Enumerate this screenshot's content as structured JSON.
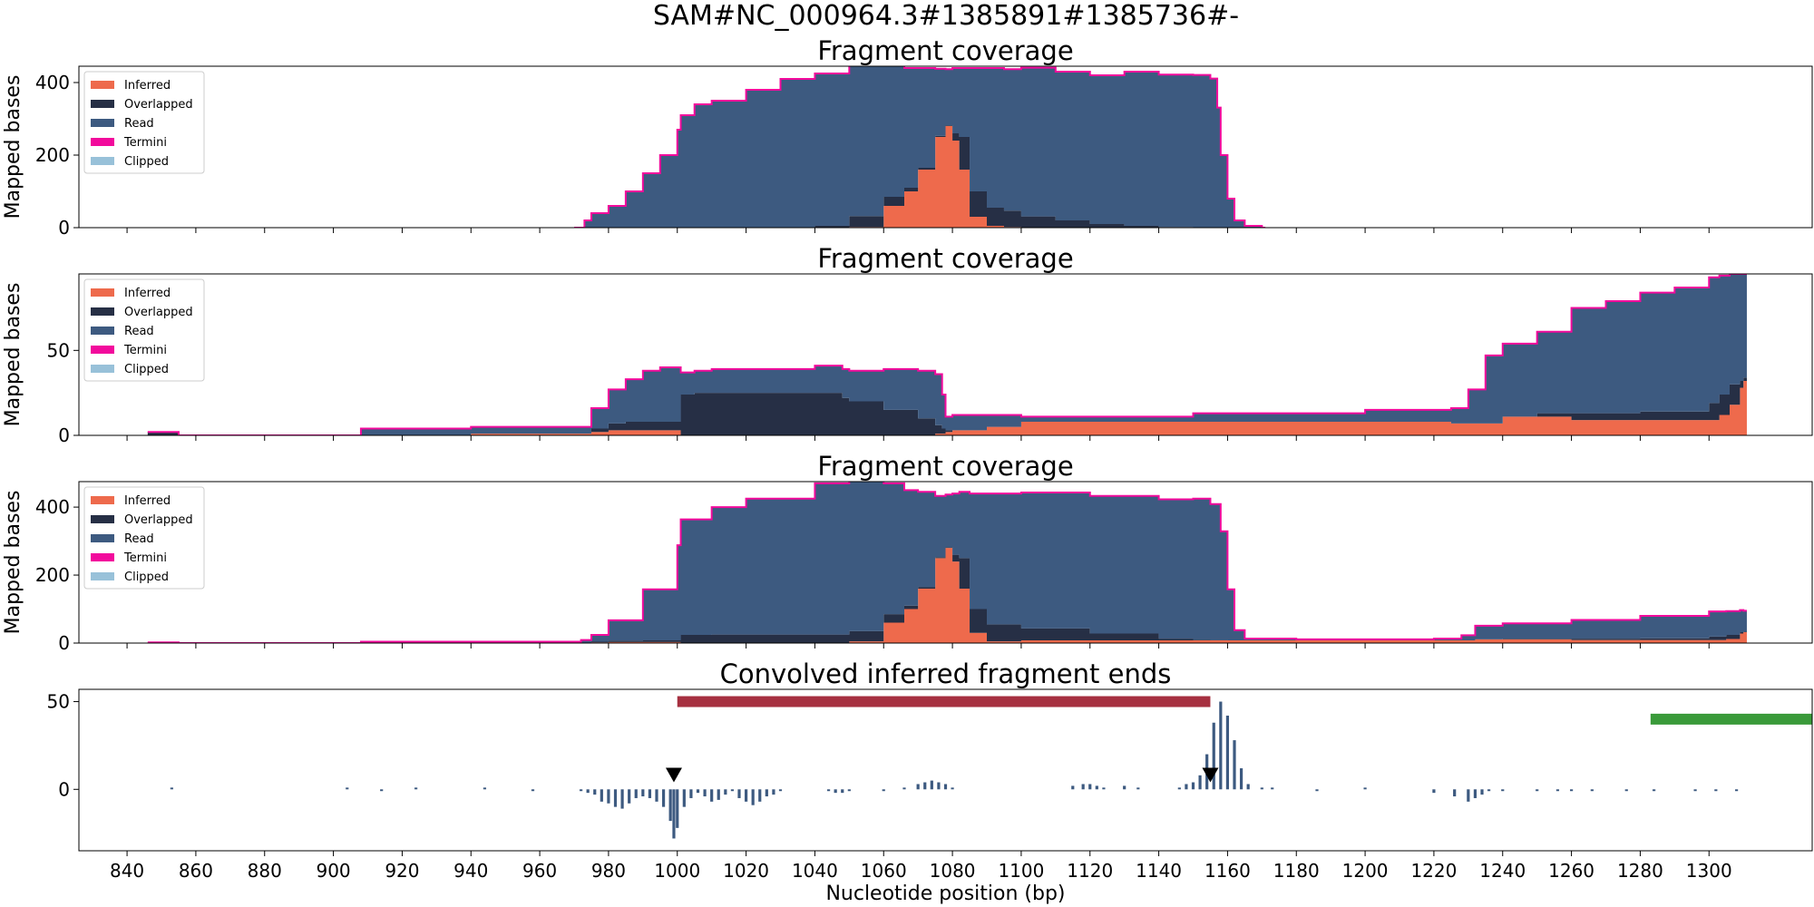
{
  "figure": {
    "suptitle": "SAM#NC_000964.3#1385891#1385736#-",
    "xlabel": "Nucleotide position (bp)",
    "x_ticks": [
      840,
      860,
      880,
      900,
      920,
      940,
      960,
      980,
      1000,
      1020,
      1040,
      1060,
      1080,
      1100,
      1120,
      1140,
      1160,
      1180,
      1200,
      1220,
      1240,
      1260,
      1280,
      1300
    ],
    "xlim": [
      826,
      1330
    ],
    "legend_entries": [
      {
        "label": "Inferred",
        "color": "#ee6a4c"
      },
      {
        "label": "Overlapped",
        "color": "#262f45"
      },
      {
        "label": "Read",
        "color": "#3d5a80"
      },
      {
        "label": "Termini",
        "color": "#f20a9c"
      },
      {
        "label": "Clipped",
        "color": "#98c1d9"
      }
    ]
  },
  "chart_data": [
    {
      "type": "area",
      "title": "Fragment coverage",
      "ylabel": "Mapped bases",
      "ylim": [
        0,
        445
      ],
      "yticks": [
        0,
        200,
        400
      ],
      "legend_position": "upper-left",
      "stacked": true,
      "x": [
        970,
        973,
        975,
        980,
        985,
        990,
        995,
        1000,
        1001,
        1005,
        1010,
        1020,
        1030,
        1040,
        1050,
        1060,
        1066,
        1070,
        1075,
        1078,
        1080,
        1082,
        1085,
        1090,
        1095,
        1100,
        1110,
        1120,
        1130,
        1140,
        1150,
        1155,
        1157,
        1158,
        1160,
        1162,
        1165,
        1170
      ],
      "series": [
        {
          "name": "Inferred",
          "values": [
            0,
            0,
            0,
            0,
            0,
            0,
            0,
            0,
            0,
            0,
            0,
            0,
            0,
            0,
            2,
            60,
            100,
            160,
            250,
            280,
            240,
            160,
            30,
            5,
            2,
            1,
            0,
            0,
            0,
            0,
            0,
            0,
            0,
            0,
            0,
            0,
            0,
            0
          ]
        },
        {
          "name": "Overlapped",
          "values": [
            0,
            0,
            0,
            0,
            0,
            0,
            0,
            0,
            0,
            0,
            0,
            0,
            0,
            5,
            30,
            25,
            10,
            5,
            3,
            2,
            20,
            90,
            70,
            50,
            45,
            30,
            20,
            10,
            5,
            2,
            1,
            1,
            1,
            0,
            0,
            0,
            0,
            0
          ]
        },
        {
          "name": "Read",
          "values": [
            0,
            20,
            40,
            60,
            100,
            150,
            200,
            270,
            310,
            340,
            350,
            380,
            410,
            420,
            415,
            370,
            330,
            275,
            185,
            155,
            180,
            190,
            340,
            385,
            390,
            410,
            410,
            410,
            425,
            420,
            420,
            410,
            330,
            200,
            80,
            20,
            5,
            0
          ]
        }
      ]
    },
    {
      "type": "area",
      "title": "Fragment coverage",
      "ylabel": "Mapped bases",
      "ylim": [
        0,
        95
      ],
      "yticks": [
        0,
        50
      ],
      "legend_position": "upper-left",
      "stacked": true,
      "x": [
        846,
        852,
        855,
        900,
        908,
        940,
        972,
        975,
        980,
        985,
        990,
        995,
        1000,
        1001,
        1005,
        1010,
        1040,
        1048,
        1050,
        1060,
        1070,
        1075,
        1077,
        1078,
        1080,
        1090,
        1100,
        1150,
        1200,
        1225,
        1230,
        1235,
        1240,
        1250,
        1260,
        1270,
        1280,
        1290,
        1300,
        1303,
        1306,
        1309,
        1310
      ],
      "series": [
        {
          "name": "Inferred",
          "values": [
            0,
            0,
            0,
            0,
            0,
            1,
            1,
            2,
            3,
            3,
            3,
            3,
            3,
            0,
            0,
            0,
            0,
            0,
            0,
            0,
            0,
            1,
            1,
            2,
            3,
            5,
            8,
            8,
            8,
            7,
            7,
            7,
            11,
            11,
            9,
            9,
            9,
            9,
            9,
            12,
            18,
            28,
            32
          ]
        },
        {
          "name": "Overlapped",
          "values": [
            2,
            2,
            0,
            0,
            0,
            0,
            0,
            2,
            4,
            5,
            5,
            5,
            5,
            24,
            25,
            25,
            25,
            22,
            20,
            15,
            10,
            5,
            3,
            1,
            0,
            0,
            0,
            0,
            0,
            0,
            0,
            0,
            0,
            2,
            4,
            4,
            5,
            5,
            10,
            12,
            12,
            4,
            2
          ]
        },
        {
          "name": "Read",
          "values": [
            0,
            0,
            0,
            0,
            4,
            4,
            4,
            12,
            20,
            25,
            30,
            32,
            32,
            13,
            13,
            14,
            16,
            17,
            18,
            24,
            28,
            30,
            20,
            8,
            9,
            7,
            3,
            5,
            7,
            9,
            20,
            40,
            43,
            48,
            62,
            66,
            70,
            73,
            74,
            70,
            65,
            63,
            61
          ]
        }
      ]
    },
    {
      "type": "area",
      "title": "Fragment coverage",
      "ylabel": "Mapped bases",
      "ylim": [
        0,
        475
      ],
      "yticks": [
        0,
        200,
        400
      ],
      "legend_position": "upper-left",
      "stacked": true,
      "x": [
        846,
        852,
        855,
        908,
        972,
        975,
        980,
        990,
        1000,
        1001,
        1010,
        1020,
        1040,
        1050,
        1060,
        1066,
        1070,
        1075,
        1078,
        1080,
        1082,
        1085,
        1090,
        1100,
        1120,
        1140,
        1150,
        1155,
        1158,
        1160,
        1162,
        1165,
        1180,
        1220,
        1228,
        1232,
        1240,
        1260,
        1280,
        1300,
        1305,
        1309,
        1310
      ],
      "series": [
        {
          "name": "Inferred",
          "values": [
            0,
            0,
            0,
            0,
            1,
            2,
            3,
            3,
            3,
            0,
            0,
            0,
            0,
            5,
            60,
            100,
            160,
            250,
            280,
            240,
            160,
            30,
            5,
            8,
            8,
            8,
            8,
            8,
            8,
            8,
            8,
            8,
            8,
            8,
            8,
            11,
            11,
            9,
            9,
            9,
            12,
            28,
            32
          ]
        },
        {
          "name": "Overlapped",
          "values": [
            2,
            2,
            0,
            0,
            0,
            2,
            4,
            5,
            5,
            24,
            25,
            25,
            25,
            30,
            25,
            10,
            5,
            3,
            2,
            20,
            90,
            70,
            50,
            35,
            20,
            5,
            2,
            1,
            1,
            0,
            0,
            0,
            0,
            0,
            0,
            0,
            2,
            4,
            5,
            10,
            12,
            4,
            2
          ]
        },
        {
          "name": "Read",
          "values": [
            0,
            0,
            0,
            4,
            8,
            20,
            60,
            150,
            280,
            340,
            375,
            400,
            445,
            445,
            385,
            340,
            280,
            180,
            155,
            180,
            195,
            340,
            385,
            400,
            405,
            410,
            415,
            400,
            320,
            150,
            30,
            5,
            3,
            5,
            15,
            40,
            45,
            55,
            66,
            74,
            70,
            65,
            61
          ]
        }
      ]
    },
    {
      "type": "bar",
      "title": "Convolved inferred fragment ends",
      "ylabel": "",
      "ylim": [
        -35,
        57
      ],
      "yticks": [
        0,
        50
      ],
      "series": [
        {
          "name": "",
          "x": [
            853,
            904,
            914,
            924,
            944,
            958,
            972,
            974,
            976,
            978,
            980,
            982,
            984,
            986,
            988,
            990,
            992,
            994,
            996,
            998,
            999,
            1000,
            1002,
            1004,
            1006,
            1008,
            1010,
            1012,
            1014,
            1016,
            1018,
            1020,
            1022,
            1024,
            1026,
            1028,
            1030,
            1044,
            1046,
            1048,
            1050,
            1060,
            1066,
            1070,
            1072,
            1074,
            1076,
            1078,
            1080,
            1115,
            1118,
            1120,
            1122,
            1124,
            1130,
            1134,
            1146,
            1148,
            1150,
            1152,
            1154,
            1156,
            1158,
            1160,
            1162,
            1164,
            1166,
            1170,
            1173,
            1186,
            1200,
            1220,
            1226,
            1230,
            1232,
            1234,
            1236,
            1240,
            1250,
            1256,
            1260,
            1266,
            1276,
            1284,
            1296,
            1302,
            1308
          ],
          "values": [
            1,
            1,
            -1,
            1,
            1,
            -1,
            -1,
            -2,
            -3,
            -7,
            -8,
            -10,
            -11,
            -8,
            -5,
            -4,
            -5,
            -7,
            -10,
            -18,
            -28,
            -22,
            -10,
            -5,
            -2,
            -4,
            -7,
            -6,
            -3,
            -1,
            -5,
            -7,
            -9,
            -7,
            -4,
            -3,
            -1,
            -1,
            -2,
            -2,
            -1,
            -1,
            1,
            3,
            4,
            5,
            4,
            3,
            1,
            2,
            3,
            3,
            2,
            1,
            2,
            1,
            1,
            3,
            4,
            8,
            20,
            38,
            50,
            42,
            28,
            12,
            3,
            1,
            1,
            -1,
            1,
            -2,
            -4,
            -7,
            -5,
            -3,
            -1,
            -1,
            -1,
            -1,
            -1,
            -1,
            -1,
            -1,
            -1,
            -1,
            -1
          ]
        }
      ],
      "intervals": [
        {
          "start": 1000,
          "end": 1155,
          "y": 50,
          "color": "#a63040"
        },
        {
          "start": 1283,
          "end": 1350,
          "y": 40,
          "color": "#3a9a3a"
        }
      ],
      "markers": [
        {
          "x": 999,
          "y": 4,
          "shape": "triangle-down"
        },
        {
          "x": 1155,
          "y": 4,
          "shape": "triangle-down"
        }
      ]
    }
  ]
}
